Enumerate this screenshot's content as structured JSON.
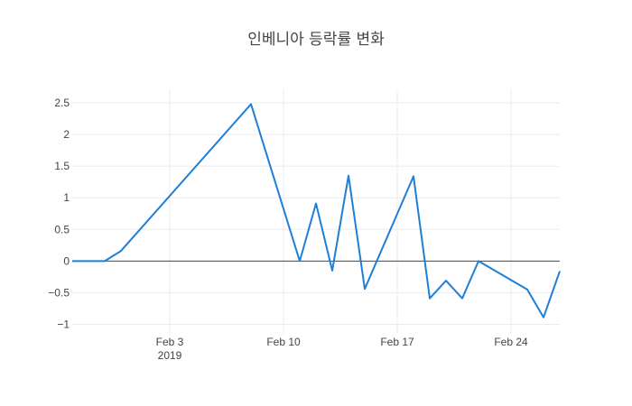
{
  "chart_data": {
    "type": "line",
    "title": "인베니아 등락률 변화",
    "xlabel": "",
    "ylabel": "",
    "x_range": [
      "2019-01-28",
      "2019-02-27"
    ],
    "ylim": [
      -1.15,
      2.7
    ],
    "x_ticks": [
      {
        "date": "2019-02-03",
        "label": "Feb 3",
        "sublabel": "2019"
      },
      {
        "date": "2019-02-10",
        "label": "Feb 10",
        "sublabel": ""
      },
      {
        "date": "2019-02-17",
        "label": "Feb 17",
        "sublabel": ""
      },
      {
        "date": "2019-02-24",
        "label": "Feb 24",
        "sublabel": ""
      }
    ],
    "y_ticks": [
      {
        "value": 2.5,
        "label": "2.5"
      },
      {
        "value": 2,
        "label": "2"
      },
      {
        "value": 1.5,
        "label": "1.5"
      },
      {
        "value": 1,
        "label": "1"
      },
      {
        "value": 0.5,
        "label": "0.5"
      },
      {
        "value": 0,
        "label": "0"
      },
      {
        "value": -0.5,
        "label": "−0.5"
      },
      {
        "value": -1,
        "label": "−1"
      }
    ],
    "grid": true,
    "zeroline": true,
    "line_color": "#1f7fd8",
    "series": [
      {
        "x": [
          "2019-01-28",
          "2019-01-29",
          "2019-01-30",
          "2019-01-31",
          "2019-02-08",
          "2019-02-11",
          "2019-02-12",
          "2019-02-13",
          "2019-02-14",
          "2019-02-15",
          "2019-02-18",
          "2019-02-19",
          "2019-02-20",
          "2019-02-21",
          "2019-02-22",
          "2019-02-25",
          "2019-02-26",
          "2019-02-27"
        ],
        "y": [
          0,
          0,
          0,
          0.16,
          2.48,
          0,
          0.91,
          -0.15,
          1.35,
          -0.44,
          1.34,
          -0.59,
          -0.31,
          -0.59,
          0,
          -0.45,
          -0.89,
          -0.16
        ]
      }
    ]
  }
}
